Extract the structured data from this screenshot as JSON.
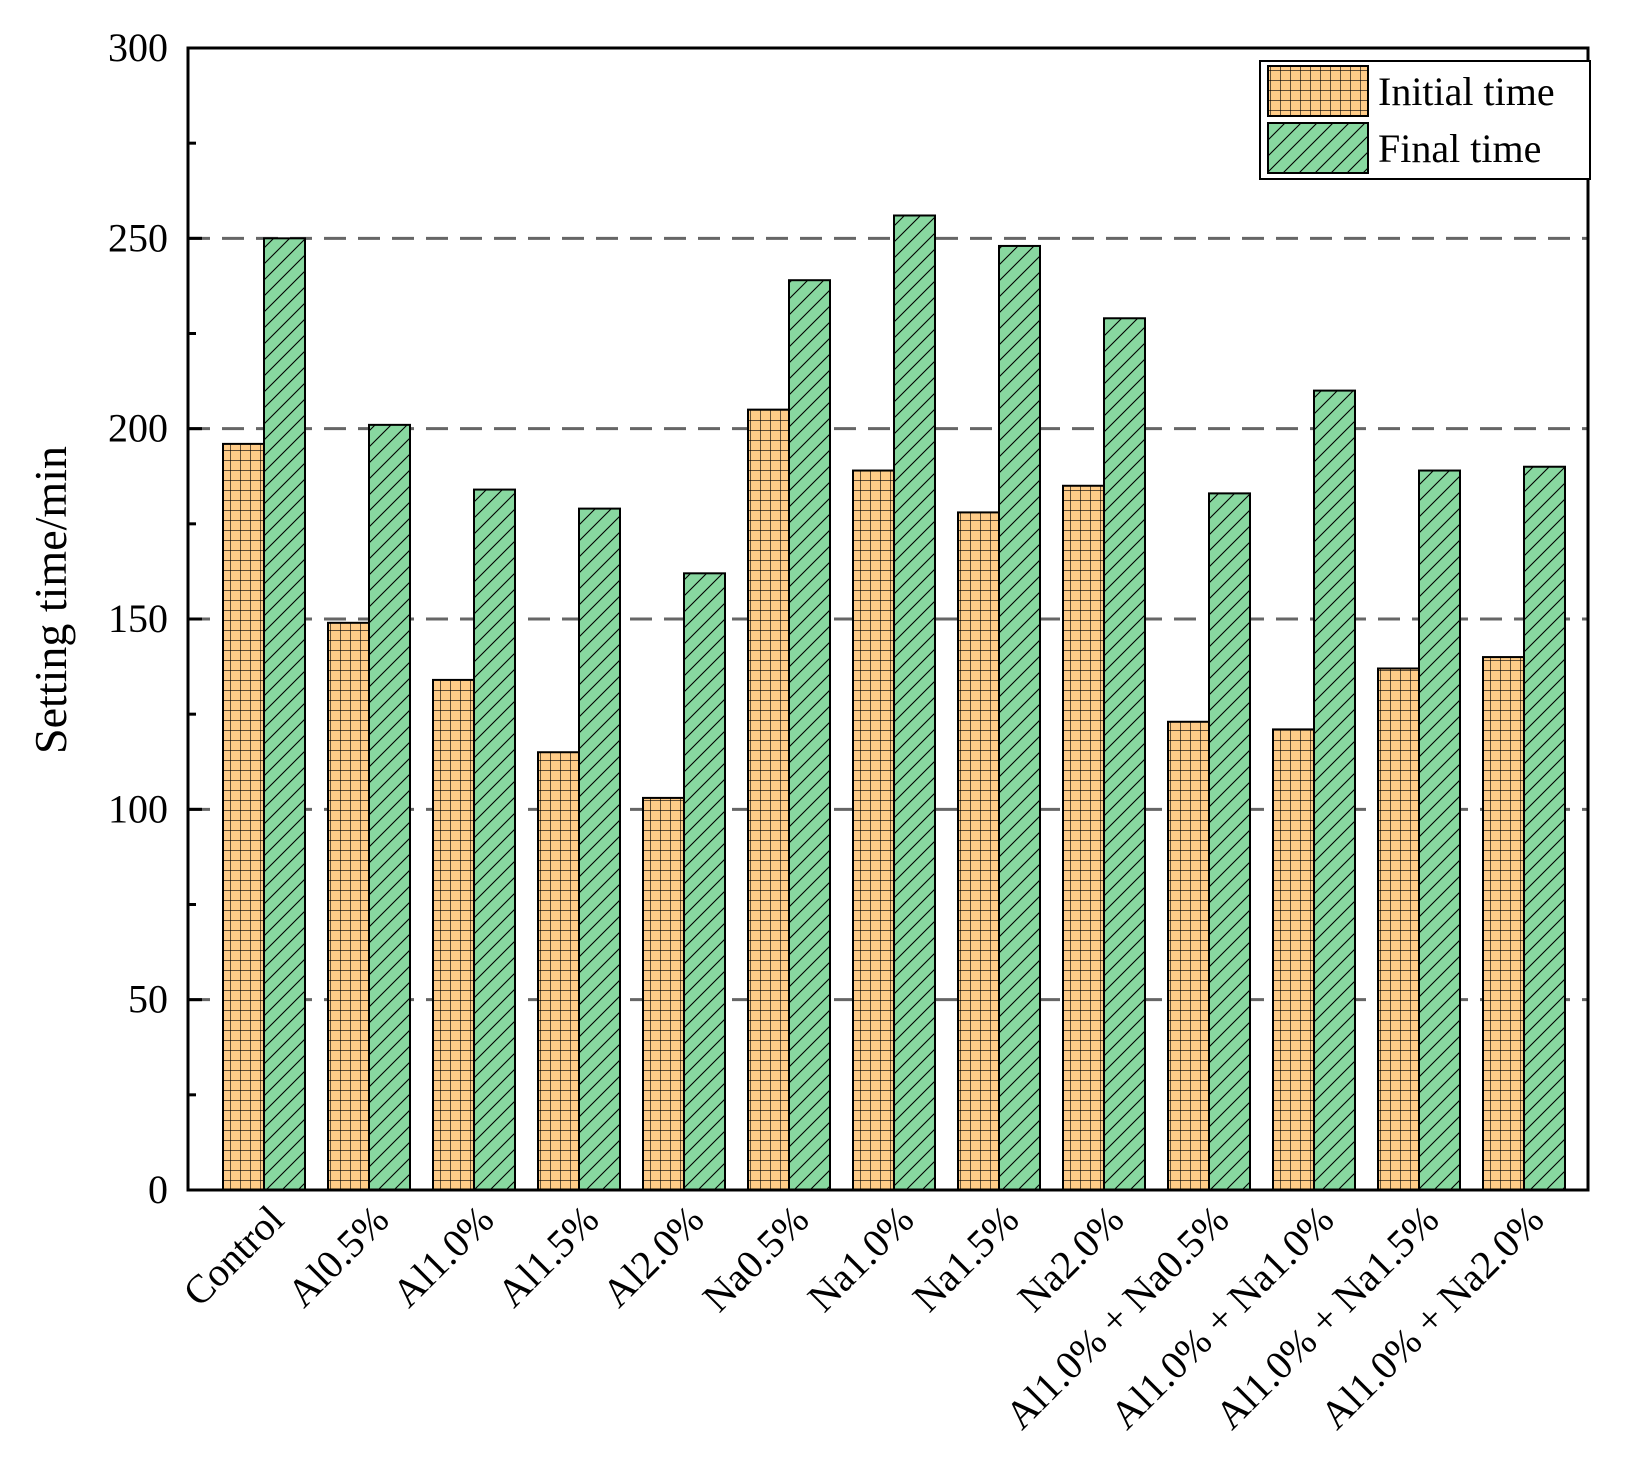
{
  "chart_data": {
    "type": "bar",
    "title": "",
    "xlabel": "",
    "ylabel": "Setting time/min",
    "ylim": [
      0,
      300
    ],
    "yticks": [
      0,
      50,
      100,
      150,
      200,
      250,
      300
    ],
    "gridlines": [
      50,
      100,
      150,
      200,
      250
    ],
    "grid": true,
    "legend_position": "top-right",
    "categories": [
      "Control",
      "Al0.5%",
      "Al1.0%",
      "Al1.5%",
      "Al2.0%",
      "Na0.5%",
      "Na1.0%",
      "Na1.5%",
      "Na2.0%",
      "Al1.0% + Na0.5%",
      "Al1.0% + Na1.0%",
      "Al1.0% + Na1.5%",
      "Al1.0% + Na2.0%"
    ],
    "series": [
      {
        "name": "Initial time",
        "color": "#FFCC88",
        "pattern": "grid",
        "values": [
          196,
          149,
          134,
          115,
          103,
          205,
          189,
          178,
          185,
          123,
          121,
          137,
          140
        ]
      },
      {
        "name": "Final time",
        "color": "#88D8A0",
        "pattern": "diagonal-hatch",
        "values": [
          250,
          201,
          184,
          179,
          162,
          239,
          256,
          248,
          229,
          183,
          210,
          189,
          190
        ]
      }
    ]
  }
}
